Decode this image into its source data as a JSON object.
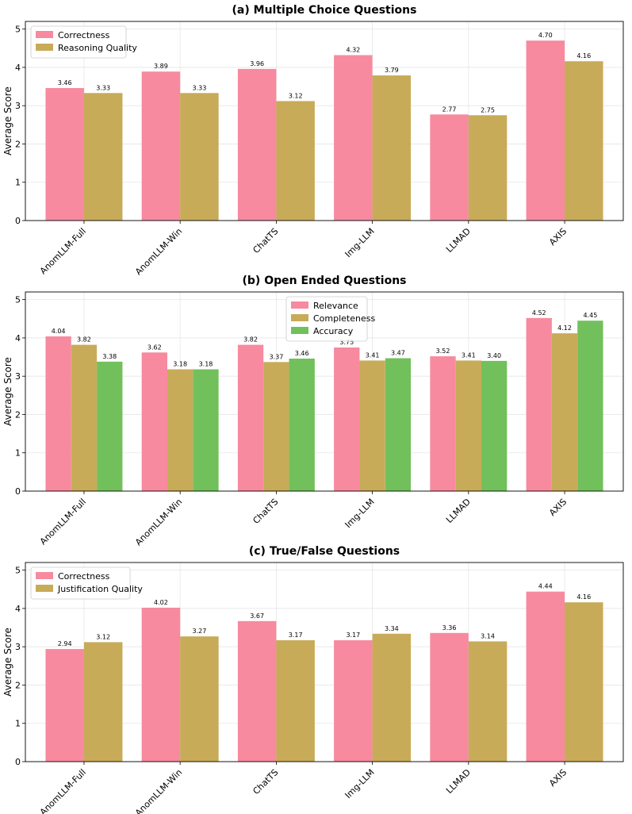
{
  "colors": [
    "#f78a9f",
    "#c8ab58",
    "#72c05c"
  ],
  "chart_data": [
    {
      "type": "bar",
      "title": "(a) Multiple Choice Questions",
      "ylabel": "Average Score",
      "xlabel": "",
      "ylim": [
        0,
        5.2
      ],
      "yticks": [
        "0",
        "1",
        "2",
        "3",
        "4",
        "5"
      ],
      "grid": true,
      "legend_position": "top-left",
      "categories": [
        "AnomLLM-Full",
        "AnomLLM-Win",
        "ChatTS",
        "Img-LLM",
        "LLMAD",
        "AXIS"
      ],
      "series": [
        {
          "name": "Correctness",
          "values": [
            3.46,
            3.89,
            3.96,
            4.32,
            2.77,
            4.7
          ],
          "labels": [
            "3.46",
            "3.89",
            "3.96",
            "4.32",
            "2.77",
            "4.70"
          ]
        },
        {
          "name": "Reasoning Quality",
          "values": [
            3.33,
            3.33,
            3.12,
            3.79,
            2.75,
            4.16
          ],
          "labels": [
            "3.33",
            "3.33",
            "3.12",
            "3.79",
            "2.75",
            "4.16"
          ]
        }
      ]
    },
    {
      "type": "bar",
      "title": "(b) Open Ended Questions",
      "ylabel": "Average Score",
      "xlabel": "",
      "ylim": [
        0,
        5.2
      ],
      "yticks": [
        "0",
        "1",
        "2",
        "3",
        "4",
        "5"
      ],
      "grid": true,
      "legend_position": "top-center",
      "categories": [
        "AnomLLM-Full",
        "AnomLLM-Win",
        "ChatTS",
        "Img-LLM",
        "LLMAD",
        "AXIS"
      ],
      "series": [
        {
          "name": "Relevance",
          "values": [
            4.04,
            3.62,
            3.82,
            3.75,
            3.52,
            4.52
          ],
          "labels": [
            "4.04",
            "3.62",
            "3.82",
            "3.75",
            "3.52",
            "4.52"
          ]
        },
        {
          "name": "Completeness",
          "values": [
            3.82,
            3.18,
            3.37,
            3.41,
            3.41,
            4.12
          ],
          "labels": [
            "3.82",
            "3.18",
            "3.37",
            "3.41",
            "3.41",
            "4.12"
          ]
        },
        {
          "name": "Accuracy",
          "values": [
            3.38,
            3.18,
            3.46,
            3.47,
            3.4,
            4.45
          ],
          "labels": [
            "3.38",
            "3.18",
            "3.46",
            "3.47",
            "3.40",
            "4.45"
          ]
        }
      ]
    },
    {
      "type": "bar",
      "title": "(c) True/False Questions",
      "ylabel": "Average Score",
      "xlabel": "",
      "ylim": [
        0,
        5.2
      ],
      "yticks": [
        "0",
        "1",
        "2",
        "3",
        "4",
        "5"
      ],
      "grid": true,
      "legend_position": "top-left",
      "categories": [
        "AnomLLM-Full",
        "AnomLLM-Win",
        "ChatTS",
        "Img-LLM",
        "LLMAD",
        "AXIS"
      ],
      "series": [
        {
          "name": "Correctness",
          "values": [
            2.94,
            4.02,
            3.67,
            3.17,
            3.36,
            4.44
          ],
          "labels": [
            "2.94",
            "4.02",
            "3.67",
            "3.17",
            "3.36",
            "4.44"
          ]
        },
        {
          "name": "Justification Quality",
          "values": [
            3.12,
            3.27,
            3.17,
            3.34,
            3.14,
            4.16
          ],
          "labels": [
            "3.12",
            "3.27",
            "3.17",
            "3.34",
            "3.14",
            "4.16"
          ]
        }
      ]
    }
  ]
}
